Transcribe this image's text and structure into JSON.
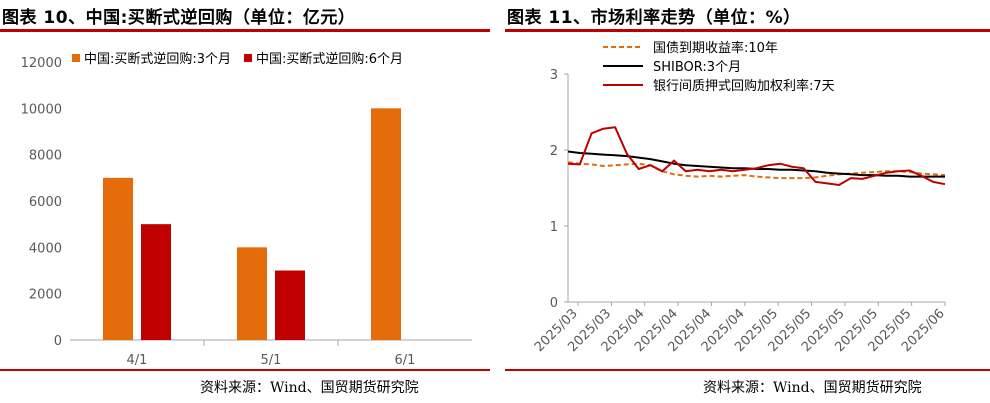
{
  "colors": {
    "accent_red": "#c00000",
    "orange": "#e46c0a",
    "dark_red": "#c00000",
    "black": "#000000",
    "axis": "#a6a6a6"
  },
  "left": {
    "title": "图表 10、中国:买断式逆回购（单位：亿元）",
    "source": "资料来源：Wind、国贸期货研究院"
  },
  "right": {
    "title": "图表 11、市场利率走势（单位：%）",
    "source": "资料来源：Wind、国贸期货研究院"
  },
  "chart_data": [
    {
      "type": "bar",
      "categories": [
        "4/1",
        "5/1",
        "6/1"
      ],
      "series": [
        {
          "name": "中国:买断式逆回购:3个月",
          "color": "#e46c0a",
          "values": [
            7000,
            4000,
            10000
          ]
        },
        {
          "name": "中国:买断式逆回购:6个月",
          "color": "#c00000",
          "values": [
            5000,
            3000,
            null
          ]
        }
      ],
      "ylim": [
        0,
        12000
      ],
      "yticks": [
        "0",
        "2000",
        "4000",
        "6000",
        "8000",
        "10000",
        "12000"
      ],
      "legend_position": "top",
      "grid": false
    },
    {
      "type": "line",
      "x_ticks": [
        "2025/03",
        "2025/03",
        "2025/04",
        "2025/04",
        "2025/04",
        "2025/04",
        "2025/05",
        "2025/05",
        "2025/05",
        "2025/05",
        "2025/05",
        "2025/06"
      ],
      "ylim": [
        0,
        3
      ],
      "yticks": [
        "0",
        "1",
        "2",
        "3"
      ],
      "legend_position": "top",
      "grid": false,
      "series": [
        {
          "name": "国债到期收益率:10年",
          "color": "#e46c0a",
          "style": "dashed",
          "values": [
            1.84,
            1.82,
            1.81,
            1.79,
            1.8,
            1.81,
            1.82,
            1.8,
            1.72,
            1.68,
            1.66,
            1.65,
            1.66,
            1.65,
            1.66,
            1.67,
            1.65,
            1.64,
            1.63,
            1.63,
            1.63,
            1.64,
            1.66,
            1.68,
            1.69,
            1.7,
            1.71,
            1.72,
            1.72,
            1.71,
            1.69,
            1.68,
            1.67
          ]
        },
        {
          "name": "SHIBOR:3个月",
          "color": "#000000",
          "style": "solid",
          "values": [
            1.98,
            1.96,
            1.95,
            1.94,
            1.93,
            1.92,
            1.9,
            1.88,
            1.85,
            1.82,
            1.8,
            1.79,
            1.78,
            1.77,
            1.76,
            1.76,
            1.75,
            1.75,
            1.74,
            1.74,
            1.73,
            1.72,
            1.7,
            1.69,
            1.68,
            1.67,
            1.67,
            1.66,
            1.66,
            1.65,
            1.65,
            1.65,
            1.65
          ]
        },
        {
          "name": "银行间质押式回购加权利率:7天",
          "color": "#c00000",
          "style": "solid",
          "values": [
            1.82,
            1.81,
            2.22,
            2.28,
            2.3,
            1.95,
            1.75,
            1.8,
            1.72,
            1.86,
            1.72,
            1.74,
            1.72,
            1.74,
            1.72,
            1.74,
            1.76,
            1.8,
            1.82,
            1.78,
            1.76,
            1.58,
            1.56,
            1.54,
            1.63,
            1.62,
            1.66,
            1.7,
            1.72,
            1.73,
            1.66,
            1.58,
            1.55
          ]
        }
      ]
    }
  ]
}
